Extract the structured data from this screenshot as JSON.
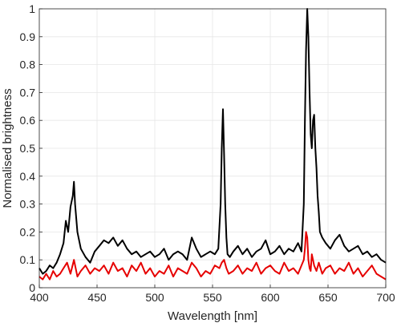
{
  "chart_data": {
    "type": "line",
    "title": "",
    "xlabel": "Wavelength [nm]",
    "ylabel": "Normalised brightness",
    "xlim": [
      400,
      700
    ],
    "ylim": [
      0,
      1
    ],
    "xticks": [
      400,
      450,
      500,
      550,
      600,
      650,
      700
    ],
    "yticks": [
      0,
      0.1,
      0.2,
      0.3,
      0.4,
      0.5,
      0.6,
      0.7,
      0.8,
      0.9,
      1
    ],
    "x_tick_labels": [
      "400",
      "450",
      "500",
      "550",
      "600",
      "650",
      "700"
    ],
    "y_tick_labels": [
      "0",
      "0.1",
      "0.2",
      "0.3",
      "0.4",
      "0.5",
      "0.6",
      "0.7",
      "0.8",
      "0.9",
      "1"
    ],
    "grid": true,
    "legend": "none",
    "series": [
      {
        "color": "#000000",
        "x": [
          400,
          403,
          406,
          409,
          412,
          415,
          418,
          421,
          423,
          425,
          427,
          429,
          430,
          431,
          433,
          436,
          440,
          444,
          448,
          452,
          456,
          460,
          464,
          468,
          472,
          476,
          480,
          484,
          488,
          492,
          496,
          500,
          504,
          508,
          512,
          516,
          520,
          524,
          528,
          532,
          536,
          540,
          544,
          548,
          552,
          555,
          557,
          558,
          559,
          560,
          561,
          562,
          563,
          565,
          568,
          572,
          576,
          580,
          584,
          588,
          592,
          596,
          600,
          604,
          608,
          612,
          616,
          620,
          624,
          627,
          629,
          630,
          631,
          632,
          633,
          634,
          635,
          636,
          637,
          638,
          639,
          640,
          641,
          642,
          643,
          645,
          648,
          652,
          656,
          660,
          664,
          668,
          672,
          676,
          680,
          684,
          688,
          692,
          696,
          700
        ],
        "y": [
          0.07,
          0.05,
          0.06,
          0.08,
          0.07,
          0.09,
          0.12,
          0.16,
          0.24,
          0.2,
          0.29,
          0.33,
          0.38,
          0.3,
          0.2,
          0.14,
          0.11,
          0.09,
          0.13,
          0.15,
          0.17,
          0.16,
          0.18,
          0.15,
          0.17,
          0.14,
          0.12,
          0.13,
          0.11,
          0.12,
          0.13,
          0.11,
          0.12,
          0.14,
          0.1,
          0.12,
          0.13,
          0.12,
          0.1,
          0.18,
          0.14,
          0.11,
          0.12,
          0.13,
          0.12,
          0.14,
          0.3,
          0.5,
          0.64,
          0.48,
          0.3,
          0.18,
          0.12,
          0.11,
          0.13,
          0.15,
          0.12,
          0.14,
          0.11,
          0.13,
          0.14,
          0.17,
          0.12,
          0.13,
          0.15,
          0.12,
          0.14,
          0.13,
          0.16,
          0.13,
          0.3,
          0.6,
          0.85,
          1.0,
          0.9,
          0.7,
          0.55,
          0.5,
          0.6,
          0.62,
          0.5,
          0.43,
          0.33,
          0.27,
          0.2,
          0.18,
          0.16,
          0.14,
          0.17,
          0.19,
          0.15,
          0.13,
          0.14,
          0.15,
          0.12,
          0.13,
          0.11,
          0.12,
          0.1,
          0.09
        ]
      },
      {
        "color": "#e60000",
        "x": [
          400,
          403,
          406,
          409,
          412,
          415,
          418,
          421,
          424,
          427,
          430,
          433,
          436,
          440,
          444,
          448,
          452,
          456,
          460,
          464,
          468,
          472,
          476,
          480,
          484,
          488,
          492,
          496,
          500,
          504,
          508,
          512,
          516,
          520,
          524,
          528,
          532,
          536,
          540,
          544,
          548,
          552,
          556,
          558,
          560,
          562,
          564,
          568,
          572,
          576,
          580,
          584,
          588,
          592,
          596,
          600,
          604,
          608,
          612,
          616,
          620,
          624,
          627,
          629,
          630,
          631,
          632,
          633,
          634,
          635,
          636,
          638,
          640,
          642,
          645,
          648,
          652,
          656,
          660,
          664,
          668,
          672,
          676,
          680,
          684,
          688,
          692,
          696,
          700
        ],
        "y": [
          0.04,
          0.03,
          0.05,
          0.03,
          0.06,
          0.04,
          0.05,
          0.07,
          0.09,
          0.05,
          0.1,
          0.04,
          0.06,
          0.08,
          0.05,
          0.07,
          0.06,
          0.08,
          0.05,
          0.09,
          0.06,
          0.07,
          0.04,
          0.08,
          0.06,
          0.09,
          0.05,
          0.07,
          0.04,
          0.06,
          0.05,
          0.08,
          0.04,
          0.07,
          0.06,
          0.05,
          0.09,
          0.07,
          0.04,
          0.06,
          0.05,
          0.08,
          0.07,
          0.09,
          0.1,
          0.07,
          0.05,
          0.06,
          0.08,
          0.05,
          0.07,
          0.06,
          0.09,
          0.05,
          0.07,
          0.08,
          0.06,
          0.05,
          0.09,
          0.06,
          0.07,
          0.05,
          0.08,
          0.1,
          0.14,
          0.2,
          0.18,
          0.1,
          0.07,
          0.06,
          0.12,
          0.08,
          0.06,
          0.09,
          0.05,
          0.07,
          0.08,
          0.05,
          0.07,
          0.06,
          0.09,
          0.05,
          0.07,
          0.04,
          0.06,
          0.08,
          0.05,
          0.04,
          0.03
        ]
      }
    ]
  }
}
